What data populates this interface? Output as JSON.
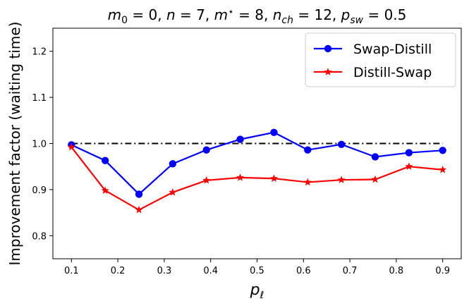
{
  "chart_data": {
    "type": "line",
    "title_parts": {
      "m0": "m",
      "m0_sub": "0",
      "m0_val": " = 0, ",
      "n": "n",
      "n_val": " = 7, ",
      "mstar": "m",
      "mstar_sup": "⋆",
      "mstar_val": " = 8, ",
      "nch": "n",
      "nch_sub": "ch",
      "nch_val": " = 12, ",
      "psw": "p",
      "psw_sub": "sw",
      "psw_val": " = 0.5"
    },
    "xlabel_main": "p",
    "xlabel_sub": "ℓ",
    "ylabel": "Improvement factor (waiting time)",
    "xlim": [
      0.06,
      0.94
    ],
    "ylim": [
      0.75,
      1.25
    ],
    "xticks": [
      "0.1",
      "0.2",
      "0.3",
      "0.4",
      "0.5",
      "0.6",
      "0.7",
      "0.8",
      "0.9"
    ],
    "yticks": [
      "0.8",
      "0.9",
      "1.0",
      "1.1",
      "1.2"
    ],
    "reference_line": {
      "y": 1.0,
      "style": "dash-dot",
      "color": "#000000"
    },
    "legend_position": "top-right",
    "series": [
      {
        "name": "Swap-Distill",
        "color": "#0000ff",
        "marker": "circle",
        "x": [
          0.1,
          0.1727,
          0.2455,
          0.3182,
          0.3909,
          0.4636,
          0.5364,
          0.6091,
          0.6818,
          0.7545,
          0.8273,
          0.9
        ],
        "y": [
          0.997,
          0.963,
          0.89,
          0.956,
          0.986,
          1.009,
          1.024,
          0.986,
          0.998,
          0.971,
          0.98,
          0.985
        ]
      },
      {
        "name": "Distill-Swap",
        "color": "#ff0000",
        "marker": "star",
        "x": [
          0.1,
          0.1727,
          0.2455,
          0.3182,
          0.3909,
          0.4636,
          0.5364,
          0.6091,
          0.6818,
          0.7545,
          0.8273,
          0.9
        ],
        "y": [
          0.992,
          0.898,
          0.856,
          0.894,
          0.92,
          0.926,
          0.924,
          0.916,
          0.921,
          0.922,
          0.95,
          0.943
        ]
      }
    ]
  }
}
